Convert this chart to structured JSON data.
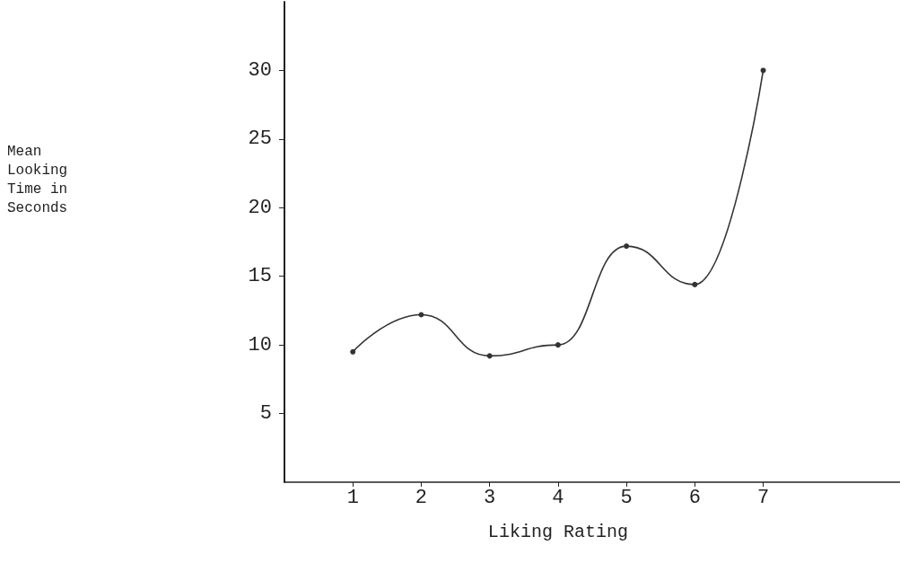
{
  "chart_data": {
    "type": "line",
    "xlabel": "Liking Rating",
    "annotations": [
      "Mean Looking Time in Seconds"
    ],
    "x": [
      1,
      2,
      3,
      4,
      5,
      6,
      7
    ],
    "series": [
      {
        "color": "#333333",
        "values": [
          9.5,
          12.2,
          9.2,
          10,
          17.2,
          14.4,
          30
        ]
      }
    ],
    "xlim": [
      0,
      9
    ],
    "xticks": [
      1,
      2,
      3,
      4,
      5,
      6,
      7
    ],
    "ylim": [
      0,
      35
    ],
    "yticks": [
      5,
      10,
      15,
      20,
      25,
      30
    ],
    "grid": false,
    "marker": "circle",
    "line_style": "solid"
  }
}
